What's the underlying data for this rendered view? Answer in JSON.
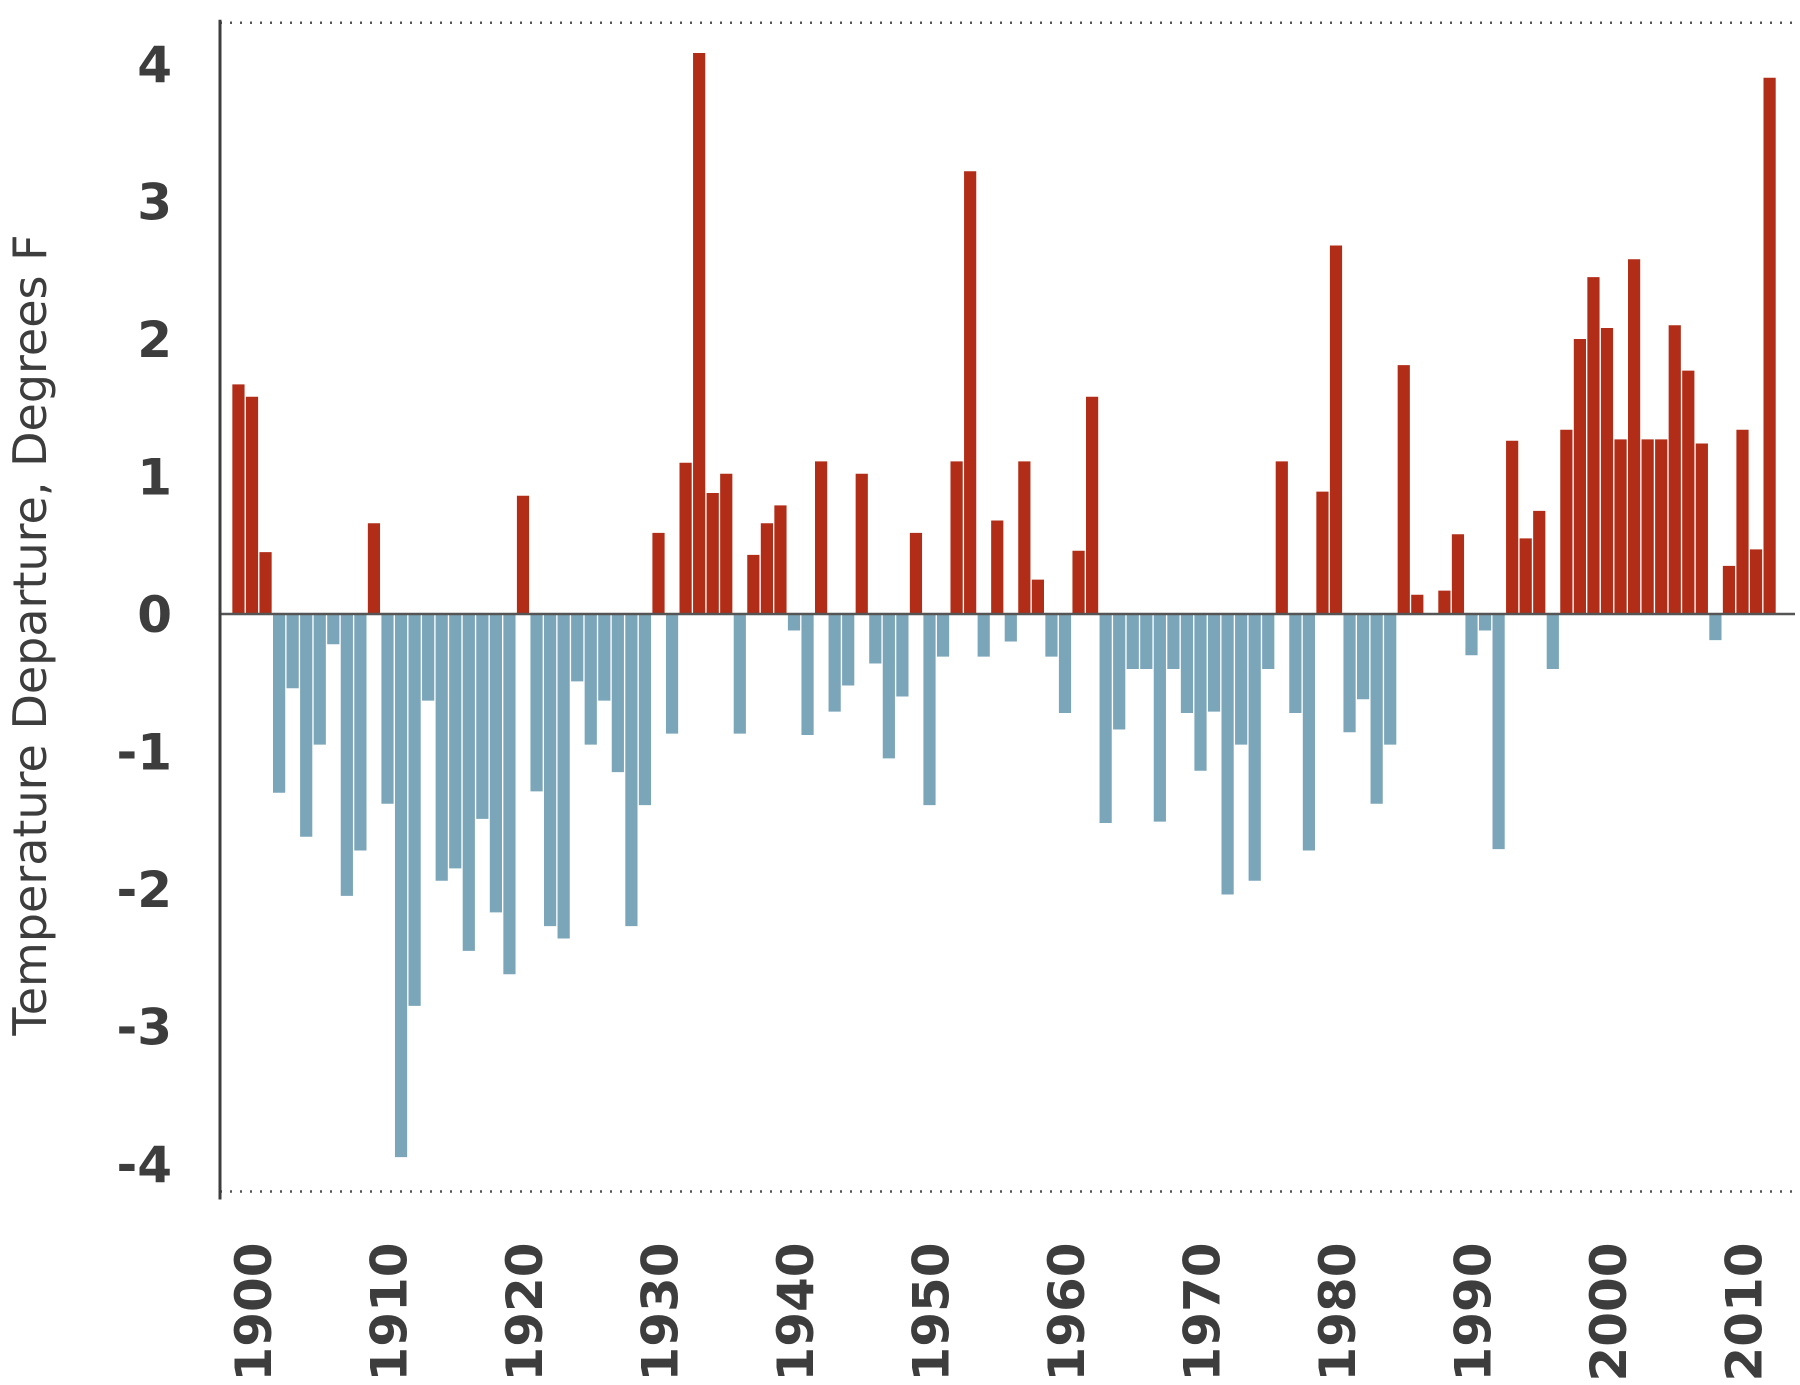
{
  "chart_data": {
    "type": "bar",
    "title": "",
    "xlabel": "",
    "ylabel": "Temperature Departure, Degrees F",
    "ylim": [
      -4.2,
      4.3
    ],
    "yticks": [
      4,
      3,
      2,
      1,
      0,
      -1,
      -2,
      -3,
      -4
    ],
    "ytick_labels": [
      "4",
      "3",
      "2",
      "1",
      "0",
      "-1",
      "-2",
      "-3",
      "-4"
    ],
    "xlim": [
      1899.5,
      2012.5
    ],
    "xticks": [
      1900,
      1910,
      1920,
      1930,
      1940,
      1950,
      1960,
      1970,
      1980,
      1990,
      2000,
      2010
    ],
    "xtick_labels": [
      "1900",
      "1910",
      "1920",
      "1930",
      "1940",
      "1950",
      "1960",
      "1970",
      "1980",
      "1990",
      "2000",
      "2010"
    ],
    "grid": false,
    "reference_lines": [
      4.3,
      -4.2
    ],
    "colors": {
      "positive": "#b22d17",
      "negative": "#7ba6ba",
      "axis": "#3d3d3d",
      "zero_line": "#555555"
    },
    "x": [
      1899,
      1900,
      1901,
      1902,
      1903,
      1904,
      1905,
      1906,
      1907,
      1908,
      1909,
      1910,
      1911,
      1912,
      1913,
      1914,
      1915,
      1916,
      1917,
      1918,
      1919,
      1920,
      1921,
      1922,
      1923,
      1924,
      1925,
      1926,
      1927,
      1928,
      1929,
      1930,
      1931,
      1932,
      1933,
      1934,
      1935,
      1936,
      1937,
      1938,
      1939,
      1940,
      1941,
      1942,
      1943,
      1944,
      1945,
      1946,
      1947,
      1948,
      1949,
      1950,
      1951,
      1952,
      1953,
      1954,
      1955,
      1956,
      1957,
      1958,
      1959,
      1960,
      1961,
      1962,
      1963,
      1964,
      1965,
      1966,
      1967,
      1968,
      1969,
      1970,
      1971,
      1972,
      1973,
      1974,
      1975,
      1976,
      1977,
      1978,
      1979,
      1980,
      1981,
      1982,
      1983,
      1984,
      1985,
      1986,
      1987,
      1988,
      1989,
      1990,
      1991,
      1992,
      1993,
      1994,
      1995,
      1996,
      1997,
      1998,
      1999,
      2000,
      2001,
      2002,
      2003,
      2004,
      2005,
      2006,
      2007,
      2008,
      2009,
      2010,
      2011,
      2012
    ],
    "values": [
      1.67,
      1.58,
      0.45,
      -1.3,
      -0.54,
      -1.62,
      -0.95,
      -0.22,
      -2.05,
      -1.72,
      0.66,
      -1.38,
      -3.95,
      -2.85,
      -0.63,
      -1.94,
      -1.85,
      -2.45,
      -1.49,
      -2.17,
      -2.62,
      0.86,
      -1.29,
      -2.27,
      -2.36,
      -0.49,
      -0.95,
      -0.63,
      -1.15,
      -2.27,
      -1.39,
      0.59,
      -0.87,
      1.1,
      4.08,
      0.88,
      1.02,
      -0.87,
      0.43,
      0.66,
      0.79,
      -0.12,
      -0.88,
      1.11,
      -0.71,
      -0.52,
      1.02,
      -0.36,
      -1.05,
      -0.6,
      0.59,
      -1.39,
      -0.31,
      1.11,
      3.22,
      -0.31,
      0.68,
      -0.2,
      1.11,
      0.25,
      -0.31,
      -0.72,
      0.46,
      1.58,
      -1.52,
      -0.84,
      -0.4,
      -0.4,
      -1.51,
      -0.4,
      -0.72,
      -1.14,
      -0.71,
      -2.04,
      -0.95,
      -1.94,
      -0.4,
      1.11,
      -0.72,
      -1.72,
      0.89,
      2.68,
      -0.86,
      -0.62,
      -1.38,
      -0.95,
      1.81,
      0.14,
      0.0,
      0.17,
      0.58,
      -0.3,
      -0.12,
      -1.71,
      1.26,
      0.55,
      0.75,
      -0.4,
      1.34,
      2.0,
      2.45,
      2.08,
      1.27,
      2.58,
      1.27,
      1.27,
      2.1,
      1.77,
      1.24,
      -0.19,
      0.35,
      1.34,
      0.47,
      3.9
    ]
  }
}
